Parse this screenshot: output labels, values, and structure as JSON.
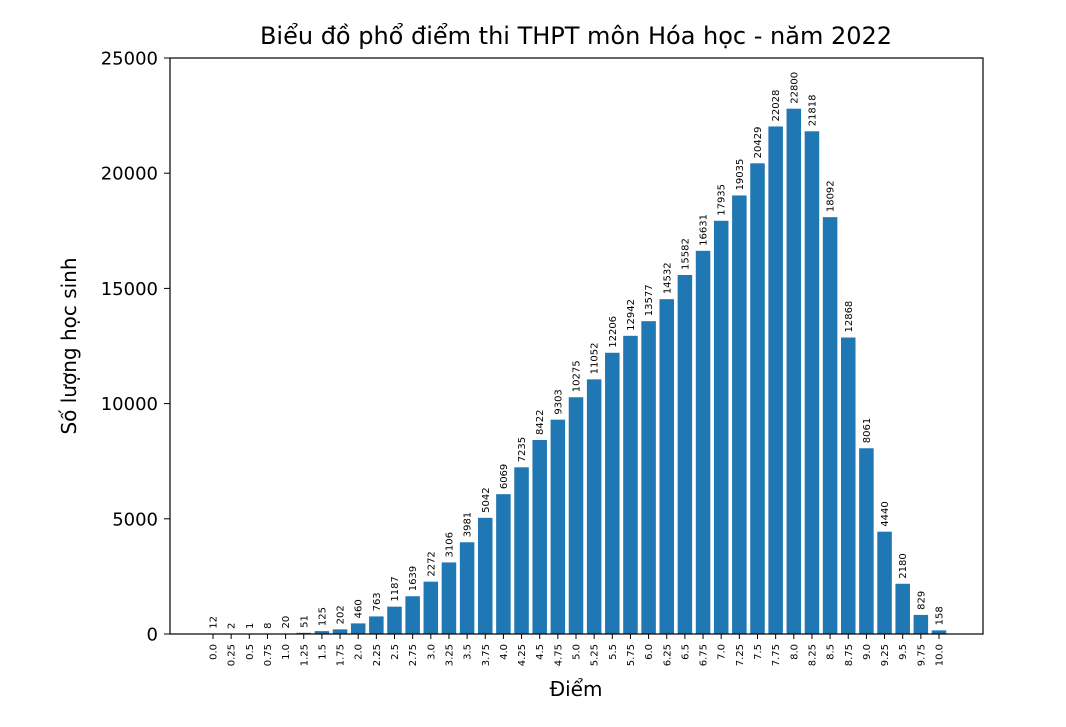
{
  "chart_data": {
    "type": "bar",
    "title": "Biểu đồ phổ điểm thi THPT môn Hóa học - năm 2022",
    "xlabel": "Điểm",
    "ylabel": "Số lượng học sinh",
    "ylim": [
      0,
      25000
    ],
    "yticks": [
      0,
      5000,
      10000,
      15000,
      20000,
      25000
    ],
    "grid": false,
    "legend": "none",
    "bar_color": "#1f77b4",
    "categories": [
      "0.0",
      "0.25",
      "0.5",
      "0.75",
      "1.0",
      "1.25",
      "1.5",
      "1.75",
      "2.0",
      "2.25",
      "2.5",
      "2.75",
      "3.0",
      "3.25",
      "3.5",
      "3.75",
      "4.0",
      "4.25",
      "4.5",
      "4.75",
      "5.0",
      "5.25",
      "5.5",
      "5.75",
      "6.0",
      "6.25",
      "6.5",
      "6.75",
      "7.0",
      "7.25",
      "7.5",
      "7.75",
      "8.0",
      "8.25",
      "8.5",
      "8.75",
      "9.0",
      "9.25",
      "9.5",
      "9.75",
      "10.0"
    ],
    "values": [
      12,
      2,
      1,
      8,
      20,
      51,
      125,
      202,
      460,
      763,
      1187,
      1639,
      2272,
      3106,
      3981,
      5042,
      6069,
      7235,
      8422,
      9303,
      10275,
      11052,
      12206,
      12942,
      13577,
      14532,
      15582,
      16631,
      17935,
      19035,
      20429,
      22028,
      22800,
      21818,
      18092,
      12868,
      8061,
      4440,
      2180,
      829,
      158
    ]
  }
}
